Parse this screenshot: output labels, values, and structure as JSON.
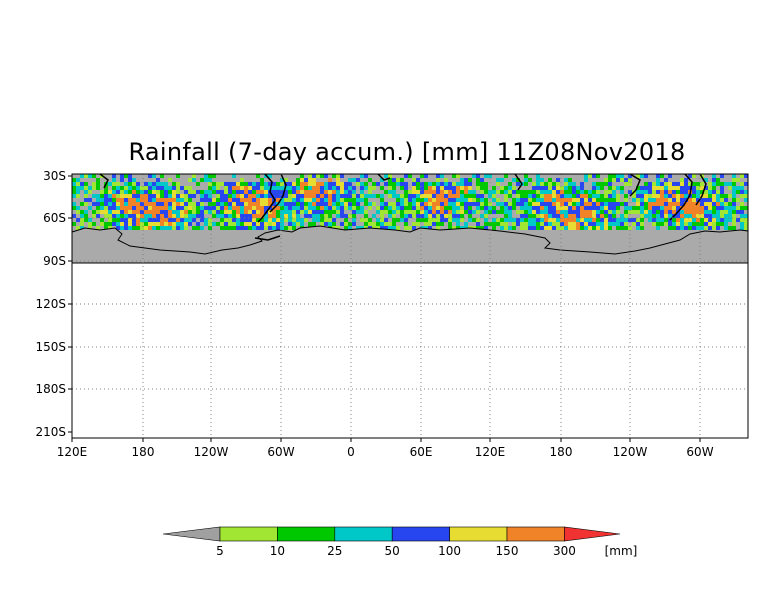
{
  "title": "Rainfall (7-day accum.) [mm] 11Z08Nov2018",
  "y_axis": {
    "ticks": [
      "30S",
      "60S",
      "90S",
      "120S",
      "150S",
      "180S",
      "210S"
    ]
  },
  "x_axis": {
    "ticks": [
      "120E",
      "180",
      "120W",
      "60W",
      "0",
      "60E",
      "120E",
      "180",
      "120W",
      "60W"
    ]
  },
  "legend": {
    "labels": [
      "5",
      "10",
      "25",
      "50",
      "100",
      "150",
      "300"
    ],
    "unit": "[mm]",
    "colors": {
      "below": "#a0a0a0",
      "bins": [
        "#a0e632",
        "#00c800",
        "#00c8c8",
        "#2846f0",
        "#e6dc32",
        "#f08228",
        "#f03232"
      ]
    }
  },
  "colors": {
    "no_rain": "#aaaaaa",
    "land": "#aaaaaa",
    "coast": "#000000",
    "grid": "#808080"
  }
}
